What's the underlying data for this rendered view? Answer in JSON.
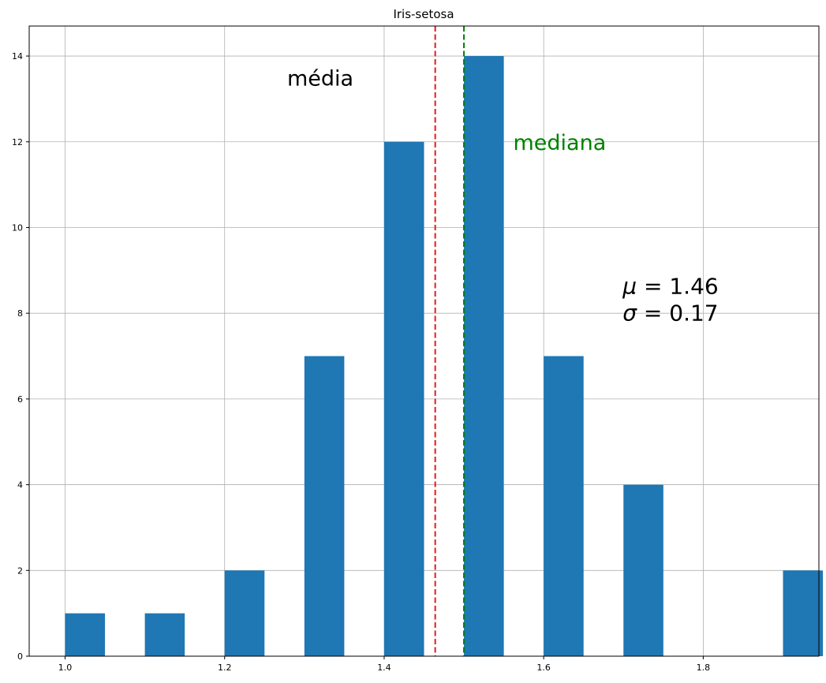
{
  "chart_data": {
    "type": "bar",
    "title": "Iris-setosa",
    "xlabel": "",
    "ylabel": "",
    "xlim": [
      0.955,
      1.945
    ],
    "ylim": [
      0,
      14.7
    ],
    "grid": true,
    "x_ticks": [
      {
        "value": 1.0,
        "label": "1.0"
      },
      {
        "value": 1.2,
        "label": "1.2"
      },
      {
        "value": 1.4,
        "label": "1.4"
      },
      {
        "value": 1.6,
        "label": "1.6"
      },
      {
        "value": 1.8,
        "label": "1.8"
      }
    ],
    "y_ticks": [
      {
        "value": 0,
        "label": "0"
      },
      {
        "value": 2,
        "label": "2"
      },
      {
        "value": 4,
        "label": "4"
      },
      {
        "value": 6,
        "label": "6"
      },
      {
        "value": 8,
        "label": "8"
      },
      {
        "value": 10,
        "label": "10"
      },
      {
        "value": 12,
        "label": "12"
      },
      {
        "value": 14,
        "label": "14"
      }
    ],
    "bar_color": "#1f77b4",
    "bins": [
      {
        "x0": 1.0,
        "x1": 1.05,
        "count": 1
      },
      {
        "x0": 1.1,
        "x1": 1.15,
        "count": 1
      },
      {
        "x0": 1.2,
        "x1": 1.25,
        "count": 2
      },
      {
        "x0": 1.3,
        "x1": 1.35,
        "count": 7
      },
      {
        "x0": 1.4,
        "x1": 1.45,
        "count": 12
      },
      {
        "x0": 1.5,
        "x1": 1.55,
        "count": 14
      },
      {
        "x0": 1.6,
        "x1": 1.65,
        "count": 7
      },
      {
        "x0": 1.7,
        "x1": 1.75,
        "count": 4
      },
      {
        "x0": 1.9,
        "x1": 1.95,
        "count": 2
      }
    ],
    "reference_lines": [
      {
        "name": "média",
        "value": 1.464,
        "color": "#e31a1c",
        "style": "dashed"
      },
      {
        "name": "mediana",
        "value": 1.5,
        "color": "#008000",
        "style": "dashed"
      }
    ],
    "annotations": [
      {
        "text": "média",
        "x": 1.32,
        "y": 13.45,
        "color": "#000000"
      },
      {
        "text": "mediana",
        "x": 1.62,
        "y": 11.95,
        "color": "#008000"
      }
    ],
    "stats": {
      "mu_symbol": "μ",
      "mu_text": " = 1.46",
      "sigma_symbol": "σ",
      "sigma_text": " = 0.17",
      "x": 1.7,
      "y_mu": 8.6,
      "y_sigma": 7.98
    }
  }
}
